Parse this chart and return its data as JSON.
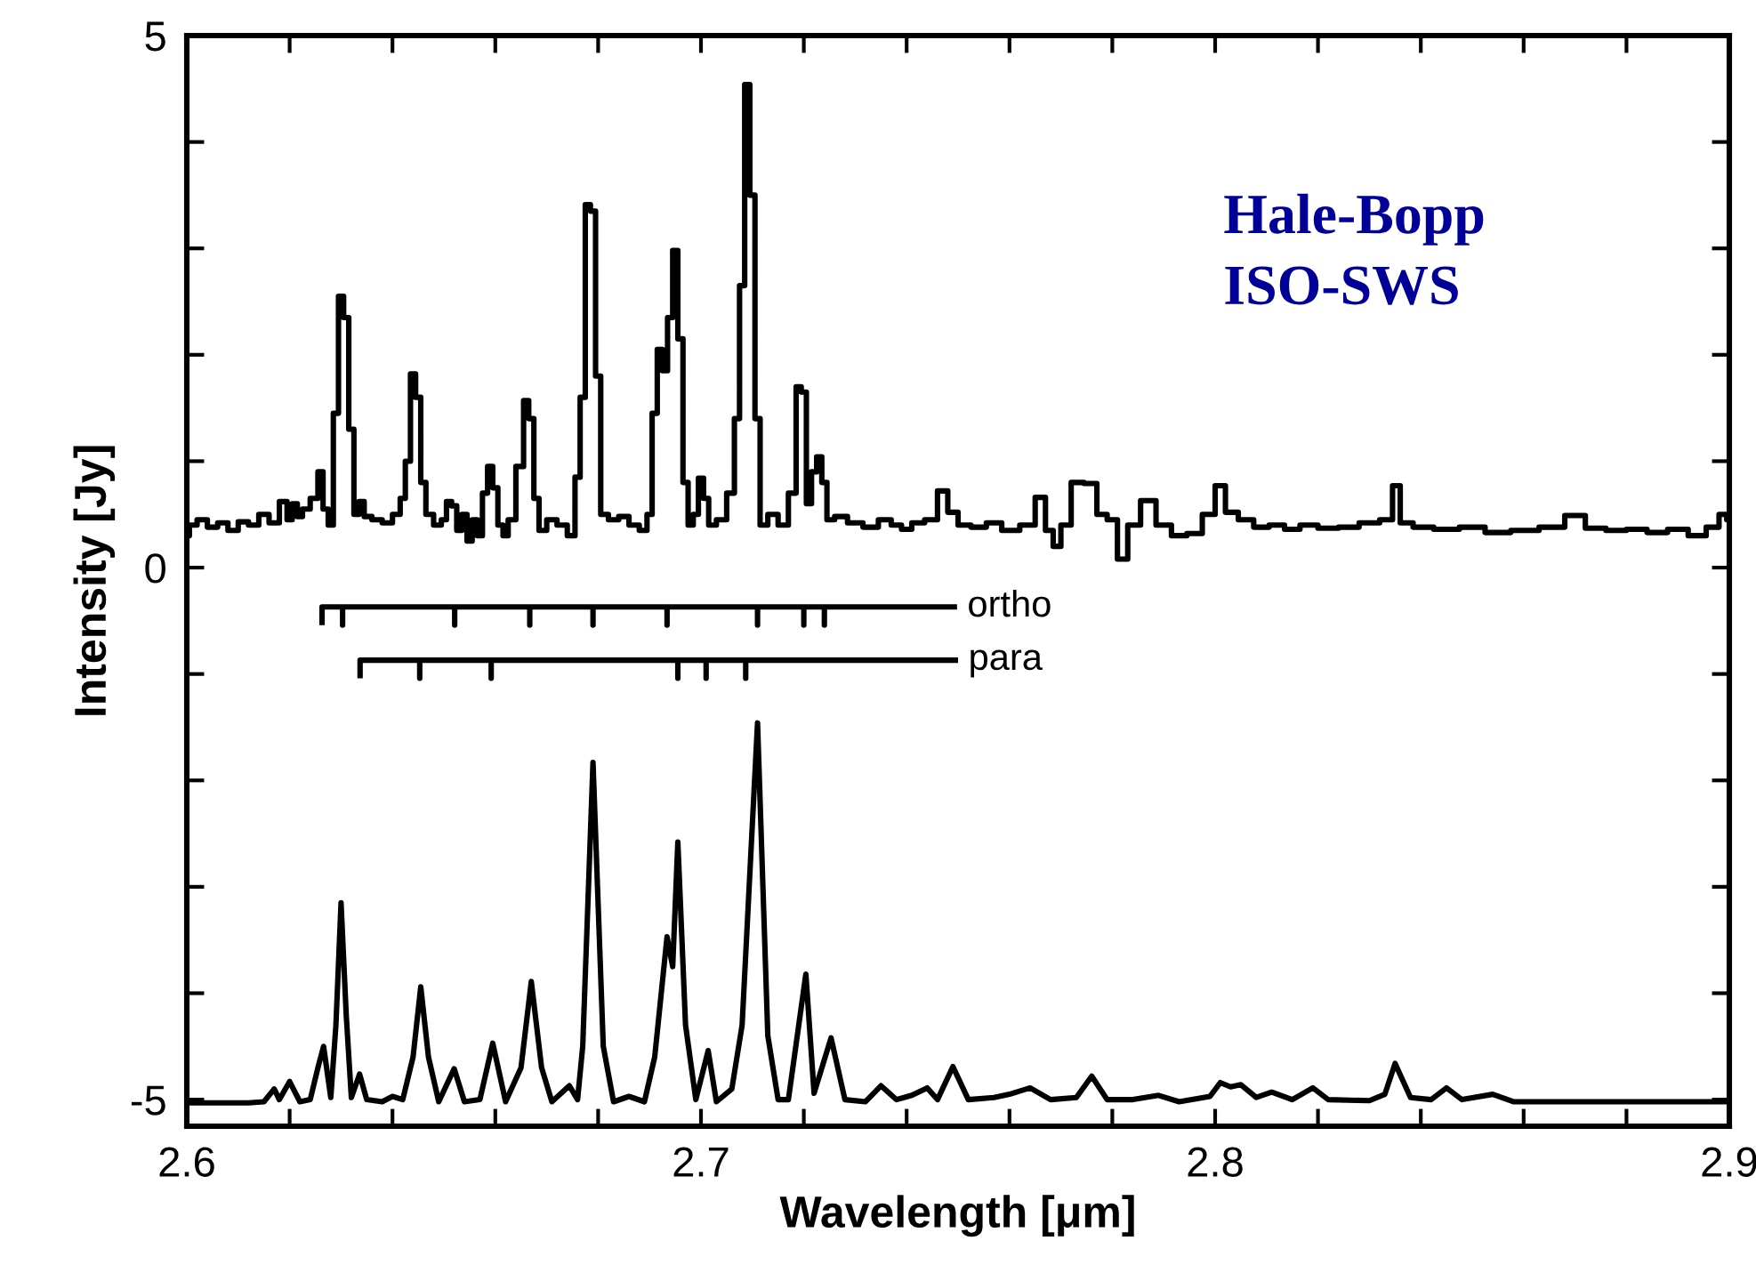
{
  "chart_data": {
    "type": "line",
    "xlabel": "Wavelength [μm]",
    "ylabel": "Intensity [Jy]",
    "xlim": [
      2.6,
      2.9
    ],
    "ylim": [
      -5.25,
      5
    ],
    "xticks": [
      2.6,
      {
        "value": 2.62,
        "label": null
      },
      {
        "value": 2.64,
        "label": null
      },
      {
        "value": 2.66,
        "label": null
      },
      {
        "value": 2.68,
        "label": null
      },
      2.7,
      {
        "value": 2.72,
        "label": null
      },
      {
        "value": 2.74,
        "label": null
      },
      {
        "value": 2.76,
        "label": null
      },
      {
        "value": 2.78,
        "label": null
      },
      2.8,
      {
        "value": 2.82,
        "label": null
      },
      {
        "value": 2.84,
        "label": null
      },
      {
        "value": 2.86,
        "label": null
      },
      {
        "value": 2.88,
        "label": null
      },
      2.9
    ],
    "yticks": [
      -5,
      {
        "value": -4,
        "label": null
      },
      {
        "value": -3,
        "label": null
      },
      {
        "value": -2,
        "label": null
      },
      {
        "value": -1,
        "label": null
      },
      0,
      {
        "value": 1,
        "label": null
      },
      {
        "value": 2,
        "label": null
      },
      {
        "value": 3,
        "label": null
      },
      {
        "value": 4,
        "label": null
      },
      5
    ],
    "grid": false,
    "legend": false,
    "annotations": [
      "Hale-Bopp",
      "ISO-SWS"
    ],
    "series": [
      {
        "type": "step",
        "color": "#000000",
        "x": [
          2.6,
          2.601,
          2.603,
          2.605,
          2.607,
          2.609,
          2.611,
          2.613,
          2.615,
          2.617,
          2.619,
          2.62,
          2.621,
          2.622,
          2.623,
          2.625,
          2.626,
          2.627,
          2.628,
          2.629,
          2.63,
          2.631,
          2.632,
          2.633,
          2.634,
          2.635,
          2.637,
          2.639,
          2.641,
          2.642,
          2.643,
          2.644,
          2.645,
          2.646,
          2.647,
          2.649,
          2.65,
          2.651,
          2.652,
          2.653,
          2.654,
          2.655,
          2.656,
          2.657,
          2.658,
          2.659,
          2.66,
          2.661,
          2.662,
          2.663,
          2.665,
          2.666,
          2.667,
          2.668,
          2.669,
          2.671,
          2.673,
          2.675,
          2.676,
          2.677,
          2.678,
          2.679,
          2.68,
          2.681,
          2.683,
          2.685,
          2.687,
          2.689,
          2.69,
          2.691,
          2.692,
          2.693,
          2.694,
          2.695,
          2.696,
          2.697,
          2.698,
          2.699,
          2.7,
          2.701,
          2.702,
          2.704,
          2.706,
          2.707,
          2.708,
          2.709,
          2.71,
          2.711,
          2.712,
          2.714,
          2.716,
          2.718,
          2.719,
          2.72,
          2.721,
          2.722,
          2.723,
          2.724,
          2.725,
          2.727,
          2.73,
          2.733,
          2.736,
          2.738,
          2.74,
          2.742,
          2.745,
          2.747,
          2.749,
          2.751,
          2.754,
          2.757,
          2.76,
          2.764,
          2.766,
          2.768,
          2.769,
          2.771,
          2.773,
          2.776,
          2.778,
          2.78,
          2.782,
          2.784,
          2.787,
          2.79,
          2.793,
          2.796,
          2.799,
          2.801,
          2.803,
          2.806,
          2.809,
          2.812,
          2.815,
          2.818,
          2.822,
          2.826,
          2.83,
          2.834,
          2.835,
          2.837,
          2.84,
          2.845,
          2.85,
          2.855,
          2.86,
          2.866,
          2.87,
          2.874,
          2.878,
          2.882,
          2.886,
          2.89,
          2.894,
          2.897,
          2.899,
          2.9
        ],
        "values": [
          0.3,
          0.4,
          0.45,
          0.38,
          0.42,
          0.35,
          0.43,
          0.4,
          0.5,
          0.42,
          0.62,
          0.45,
          0.6,
          0.48,
          0.55,
          0.65,
          0.9,
          0.55,
          0.4,
          1.45,
          2.55,
          2.35,
          1.3,
          0.5,
          0.62,
          0.48,
          0.45,
          0.42,
          0.5,
          0.65,
          1.0,
          1.82,
          1.6,
          0.8,
          0.5,
          0.4,
          0.45,
          0.62,
          0.58,
          0.35,
          0.5,
          0.25,
          0.45,
          0.3,
          0.7,
          0.95,
          0.75,
          0.4,
          0.3,
          0.45,
          0.95,
          1.57,
          1.4,
          0.65,
          0.35,
          0.45,
          0.4,
          0.3,
          0.85,
          1.6,
          3.41,
          3.35,
          1.8,
          0.5,
          0.45,
          0.48,
          0.4,
          0.35,
          0.5,
          1.45,
          2.05,
          1.85,
          2.35,
          2.98,
          2.15,
          0.8,
          0.4,
          0.5,
          0.84,
          0.65,
          0.4,
          0.45,
          0.7,
          1.4,
          2.65,
          4.54,
          3.5,
          1.4,
          0.4,
          0.5,
          0.4,
          0.7,
          1.7,
          1.65,
          0.6,
          0.9,
          1.04,
          0.8,
          0.45,
          0.48,
          0.42,
          0.38,
          0.45,
          0.4,
          0.36,
          0.42,
          0.45,
          0.72,
          0.52,
          0.4,
          0.38,
          0.42,
          0.35,
          0.4,
          0.66,
          0.35,
          0.2,
          0.4,
          0.8,
          0.79,
          0.5,
          0.45,
          0.08,
          0.4,
          0.63,
          0.4,
          0.3,
          0.32,
          0.5,
          0.77,
          0.52,
          0.45,
          0.38,
          0.4,
          0.36,
          0.4,
          0.37,
          0.38,
          0.42,
          0.45,
          0.77,
          0.42,
          0.38,
          0.36,
          0.38,
          0.33,
          0.35,
          0.38,
          0.49,
          0.37,
          0.35,
          0.36,
          0.33,
          0.36,
          0.3,
          0.38,
          0.5,
          0.45
        ]
      },
      {
        "color": "#000000",
        "x": [
          2.6,
          2.612,
          2.615,
          2.617,
          2.618,
          2.62,
          2.622,
          2.624,
          2.6255,
          2.6266,
          2.628,
          2.629,
          2.63,
          2.631,
          2.632,
          2.6336,
          2.635,
          2.638,
          2.64,
          2.642,
          2.644,
          2.6455,
          2.647,
          2.649,
          2.652,
          2.654,
          2.657,
          2.6595,
          2.662,
          2.665,
          2.667,
          2.669,
          2.671,
          2.6744,
          2.676,
          2.677,
          2.679,
          2.681,
          2.683,
          2.686,
          2.689,
          2.691,
          2.6934,
          2.6945,
          2.6955,
          2.697,
          2.699,
          2.7014,
          2.703,
          2.706,
          2.708,
          2.711,
          2.713,
          2.715,
          2.717,
          2.7204,
          2.722,
          2.7253,
          2.728,
          2.732,
          2.735,
          2.738,
          2.741,
          2.744,
          2.746,
          2.749,
          2.752,
          2.757,
          2.76,
          2.764,
          2.768,
          2.773,
          2.776,
          2.779,
          2.784,
          2.789,
          2.793,
          2.799,
          2.801,
          2.803,
          2.805,
          2.808,
          2.811,
          2.815,
          2.819,
          2.822,
          2.83,
          2.833,
          2.835,
          2.838,
          2.842,
          2.845,
          2.848,
          2.854,
          2.858,
          2.9
        ],
        "values": [
          -5.03,
          -5.03,
          -5.02,
          -4.9,
          -5.0,
          -4.83,
          -5.02,
          -5.0,
          -4.7,
          -4.5,
          -4.98,
          -4.3,
          -3.15,
          -4.2,
          -4.98,
          -4.76,
          -5.0,
          -5.02,
          -4.97,
          -5.0,
          -4.6,
          -3.94,
          -4.6,
          -5.02,
          -4.71,
          -5.02,
          -5.0,
          -4.47,
          -5.02,
          -4.7,
          -3.89,
          -4.7,
          -5.02,
          -4.87,
          -5.0,
          -4.5,
          -1.83,
          -4.5,
          -5.02,
          -4.97,
          -5.02,
          -4.6,
          -3.47,
          -3.75,
          -2.58,
          -4.3,
          -5.0,
          -4.54,
          -5.02,
          -4.9,
          -4.3,
          -1.46,
          -4.4,
          -5.0,
          -5.0,
          -3.82,
          -4.94,
          -4.42,
          -5.0,
          -5.02,
          -4.87,
          -5.0,
          -4.96,
          -4.89,
          -5.0,
          -4.69,
          -5.0,
          -4.98,
          -4.95,
          -4.89,
          -5.0,
          -4.98,
          -4.78,
          -5.0,
          -5.0,
          -4.96,
          -5.02,
          -4.97,
          -4.84,
          -4.88,
          -4.86,
          -4.98,
          -4.93,
          -5.0,
          -4.89,
          -5.0,
          -5.01,
          -4.95,
          -4.66,
          -4.98,
          -5.0,
          -4.89,
          -5.0,
          -4.95,
          -5.02,
          -5.02
        ]
      },
      {
        "name": "ortho",
        "color": "#000000",
        "x": [
          2.6263,
          2.6263,
          2.6303,
          2.6303,
          2.6303,
          2.6521,
          2.6521,
          2.6521,
          2.6667,
          2.6667,
          2.6667,
          2.679,
          2.679,
          2.679,
          2.6934,
          2.6934,
          2.6934,
          2.711,
          2.711,
          2.711,
          2.72,
          2.72,
          2.72,
          2.724,
          2.724,
          2.724,
          2.7498
        ],
        "values": [
          -0.54,
          -0.37,
          -0.37,
          -0.54,
          -0.37,
          -0.37,
          -0.54,
          -0.37,
          -0.37,
          -0.54,
          -0.37,
          -0.37,
          -0.54,
          -0.37,
          -0.37,
          -0.54,
          -0.37,
          -0.37,
          -0.54,
          -0.37,
          -0.37,
          -0.54,
          -0.37,
          -0.37,
          -0.54,
          -0.37,
          -0.37
        ]
      },
      {
        "name": "para",
        "color": "#000000",
        "x": [
          2.6337,
          2.6337,
          2.6453,
          2.6453,
          2.6453,
          2.6592,
          2.6592,
          2.6592,
          2.6955,
          2.6955,
          2.6955,
          2.701,
          2.701,
          2.701,
          2.7087,
          2.7087,
          2.7087,
          2.75
        ],
        "values": [
          -1.04,
          -0.87,
          -0.87,
          -1.04,
          -0.87,
          -0.87,
          -1.04,
          -0.87,
          -0.87,
          -1.04,
          -0.87,
          -0.87,
          -1.04,
          -0.87,
          -0.87,
          -1.04,
          -0.87,
          -0.87
        ]
      }
    ]
  }
}
